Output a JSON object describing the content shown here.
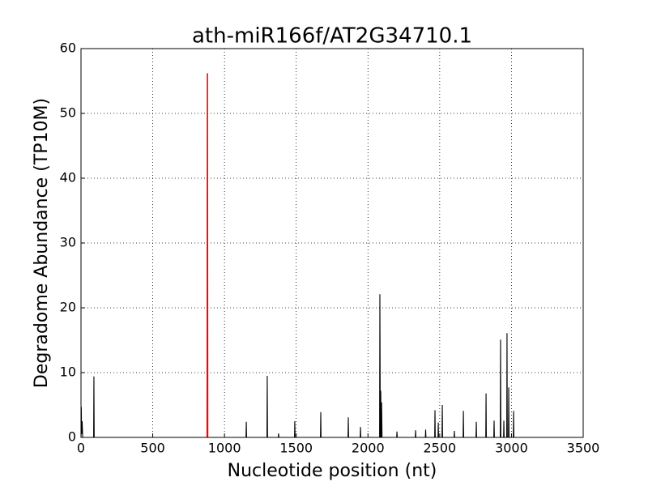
{
  "chart_data": {
    "type": "line",
    "title": "ath-miR166f/AT2G34710.1",
    "xlabel": "Nucleotide position (nt)",
    "ylabel": "Degradome Abundance (TP10M)",
    "xlim": [
      0,
      3500
    ],
    "ylim": [
      0,
      60
    ],
    "xticks": [
      0,
      500,
      1000,
      1500,
      2000,
      2500,
      3000,
      3500
    ],
    "yticks": [
      0,
      10,
      20,
      30,
      40,
      50,
      60
    ],
    "grid": true,
    "series": [
      {
        "color": "#000000",
        "x": [
          0,
          2,
          4,
          8,
          12,
          88,
          90,
          92,
          1150,
          1152,
          1154,
          1296,
          1298,
          1300,
          1375,
          1377,
          1379,
          1488,
          1490,
          1492,
          1669,
          1671,
          1673,
          1861,
          1863,
          1865,
          1946,
          1948,
          1950,
          2081,
          2083,
          2086,
          2089,
          2092,
          2095,
          2098,
          2200,
          2202,
          2204,
          2330,
          2332,
          2334,
          2400,
          2402,
          2404,
          2465,
          2467,
          2469,
          2488,
          2490,
          2492,
          2516,
          2518,
          2520,
          2600,
          2602,
          2604,
          2663,
          2665,
          2667,
          2753,
          2755,
          2757,
          2821,
          2823,
          2825,
          2877,
          2879,
          2881,
          2922,
          2924,
          2926,
          2945,
          2947,
          2949,
          2967,
          2969,
          2971,
          2979,
          2981,
          2983,
          3013,
          3015,
          3017,
          3040
        ],
        "values": [
          0,
          4.7,
          0.5,
          2.5,
          0,
          0,
          9.4,
          0,
          0,
          2.4,
          0,
          0,
          9.5,
          0,
          0,
          0.6,
          0,
          0,
          2.5,
          0,
          0,
          3.9,
          0,
          0,
          3.1,
          0,
          0,
          1.6,
          0,
          0,
          22.1,
          0,
          7.2,
          0,
          5.4,
          0,
          0,
          0.9,
          0,
          0,
          1.1,
          0,
          0,
          1.2,
          0,
          0,
          4.2,
          0,
          0,
          2.3,
          0,
          0,
          5.0,
          0,
          0,
          1.0,
          0,
          0,
          4.1,
          0,
          0,
          2.4,
          0,
          0,
          6.8,
          0,
          0,
          2.6,
          0,
          0,
          15.1,
          0,
          0,
          2.6,
          0,
          0,
          16.1,
          0,
          0,
          7.7,
          0,
          0,
          4.1,
          0,
          0
        ]
      },
      {
        "color": "#ff0000",
        "x": [
          879,
          881,
          883
        ],
        "values": [
          0,
          56.2,
          0
        ]
      }
    ]
  }
}
